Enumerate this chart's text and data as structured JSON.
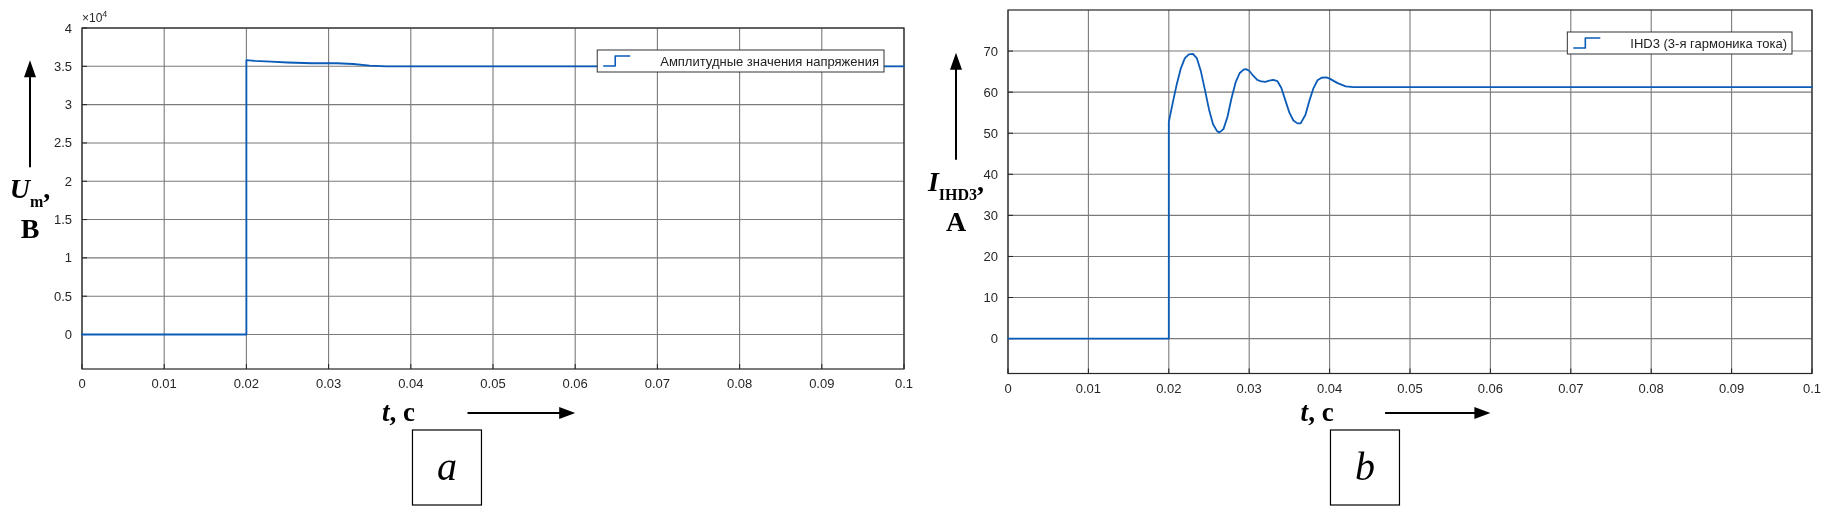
{
  "chart_data": [
    {
      "type": "line",
      "title": "a",
      "xlabel": "t, с",
      "ylabel": "U$_{m}$,\nВ",
      "annotations": [
        "×10$^{4}$"
      ],
      "xlim": [
        0,
        0.1
      ],
      "ylim": [
        -0.45,
        4
      ],
      "xticks": [
        0,
        0.01,
        0.02,
        0.03,
        0.04,
        0.05,
        0.06,
        0.07,
        0.08,
        0.09,
        0.1
      ],
      "yticks": [
        0,
        0.5,
        1,
        1.5,
        2,
        2.5,
        3,
        3.5,
        4
      ],
      "grid": true,
      "legend": "top right",
      "series": [
        {
          "name": "Амплитудные значения напряжения",
          "color": "#0a5cb8",
          "x": [
            0,
            0.02,
            0.02,
            0.021,
            0.023,
            0.025,
            0.028,
            0.031,
            0.033,
            0.035,
            0.037,
            0.1
          ],
          "values": [
            0,
            0,
            3.58,
            3.57,
            3.56,
            3.55,
            3.54,
            3.54,
            3.53,
            3.51,
            3.5,
            3.5
          ]
        }
      ]
    },
    {
      "type": "line",
      "title": "b",
      "xlabel": "t, с",
      "ylabel": "I$_{IHD3}$,\nА",
      "xlim": [
        0,
        0.1
      ],
      "ylim": [
        -8.5,
        80
      ],
      "xticks": [
        0,
        0.01,
        0.02,
        0.03,
        0.04,
        0.05,
        0.06,
        0.07,
        0.08,
        0.09,
        0.1
      ],
      "yticks": [
        0,
        10,
        20,
        30,
        40,
        50,
        60,
        70
      ],
      "grid": true,
      "legend": "top right",
      "series": [
        {
          "name": "IHD3 (3-я гармоника тока)",
          "color": "#0a5cb8",
          "x": [
            0,
            0.02,
            0.02,
            0.0205,
            0.021,
            0.0215,
            0.022,
            0.0225,
            0.023,
            0.0235,
            0.024,
            0.0245,
            0.025,
            0.0255,
            0.026,
            0.0263,
            0.0268,
            0.0273,
            0.0278,
            0.0283,
            0.0288,
            0.0293,
            0.0296,
            0.03,
            0.0305,
            0.031,
            0.0315,
            0.032,
            0.0325,
            0.033,
            0.0335,
            0.034,
            0.0345,
            0.035,
            0.0355,
            0.036,
            0.0364,
            0.037,
            0.0375,
            0.038,
            0.0385,
            0.039,
            0.0396,
            0.04,
            0.041,
            0.042,
            0.043,
            0.1
          ],
          "values": [
            0,
            0,
            52.7,
            57.5,
            62,
            65.8,
            68.3,
            69.2,
            69.3,
            68.2,
            65,
            60.5,
            55.8,
            52.2,
            50.5,
            50.2,
            51,
            54,
            58.5,
            62.3,
            64.6,
            65.5,
            65.6,
            65.2,
            64,
            63,
            62.6,
            62.5,
            62.8,
            63,
            62.7,
            61,
            58,
            55,
            53.1,
            52.4,
            52.4,
            54.5,
            58,
            61,
            62.9,
            63.5,
            63.6,
            63.3,
            62.2,
            61.4,
            61.2,
            61.2
          ]
        }
      ]
    }
  ]
}
